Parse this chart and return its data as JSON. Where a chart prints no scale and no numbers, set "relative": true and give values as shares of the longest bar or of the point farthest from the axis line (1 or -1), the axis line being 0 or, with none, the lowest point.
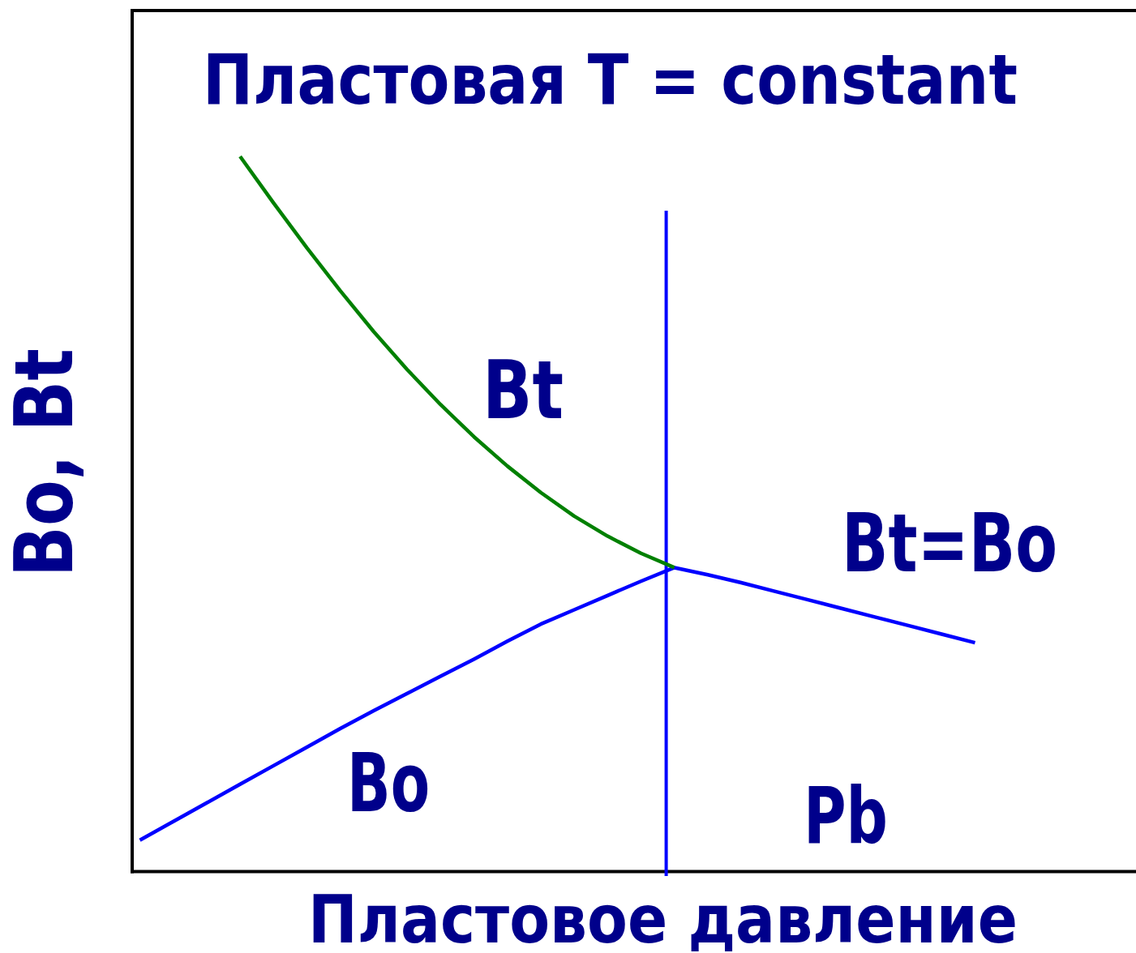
{
  "chart_data": {
    "type": "line",
    "title": "Пластовая T = constant",
    "xlabel": "Пластовое давление",
    "ylabel": "Bo, Bt",
    "relative": true,
    "categories": [
      null,
      null,
      null,
      null,
      null,
      null,
      null,
      null,
      null,
      null,
      null,
      null,
      null,
      null,
      null,
      null,
      null,
      null,
      null,
      null,
      null,
      null,
      null,
      null,
      null,
      null
    ],
    "series": [
      {
        "name": "Bo",
        "color": "#0000ff",
        "values": [
          0.044,
          0.07,
          0.096,
          0.122,
          0.148,
          0.174,
          0.2,
          0.225,
          0.249,
          0.273,
          0.297,
          0.322,
          0.346,
          0.366,
          0.386,
          0.406,
          0.425,
          0.415,
          0.404,
          0.392,
          0.38,
          0.368,
          0.356,
          0.344,
          0.332,
          0.32
        ]
      },
      {
        "name": "Bt",
        "color": "#008000",
        "values": [
          null,
          null,
          null,
          1,
          0.935,
          0.872,
          0.812,
          0.755,
          0.702,
          0.653,
          0.608,
          0.567,
          0.53,
          0.497,
          0.469,
          0.445,
          0.425,
          null,
          null,
          null,
          null,
          null,
          null,
          null,
          null,
          null
        ]
      }
    ],
    "annotations": [
      "Bt=Bo",
      "Pb"
    ]
  }
}
